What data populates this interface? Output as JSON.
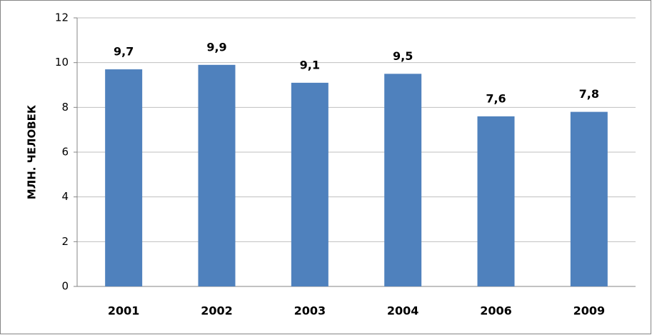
{
  "chart_data": {
    "type": "bar",
    "y_label": "МЛН. ЧЕЛОВЕК",
    "categories": [
      "2001",
      "2002",
      "2003",
      "2004",
      "2006",
      "2009"
    ],
    "values": [
      9.7,
      9.9,
      9.1,
      9.5,
      7.6,
      7.8
    ],
    "value_labels": [
      "9,7",
      "9,9",
      "9,1",
      "9,5",
      "7,6",
      "7,8"
    ],
    "color": "#4f81bd",
    "ylim": [
      0,
      12
    ],
    "yticks": [
      0,
      2,
      4,
      6,
      8,
      10,
      12
    ],
    "grid": true
  }
}
